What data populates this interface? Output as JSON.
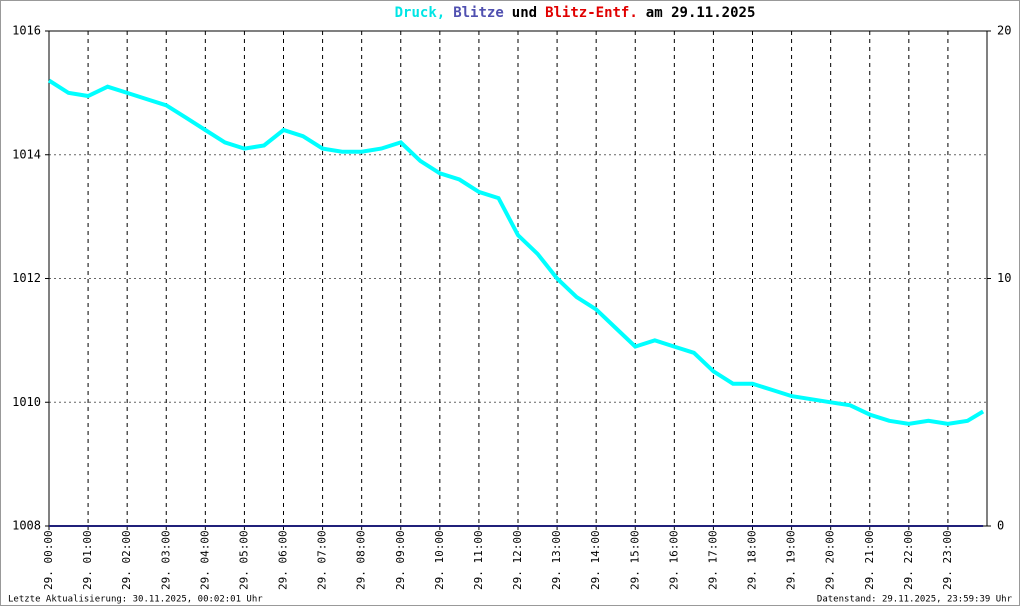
{
  "chart_data": {
    "type": "line",
    "title_parts": [
      {
        "text": "Druck,",
        "color": "#00e5e5"
      },
      {
        "text": "Blitze",
        "color": "#5050b0"
      },
      {
        "text": "und",
        "color": "#000000"
      },
      {
        "text": "Blitz-Entf.",
        "color": "#e00000"
      },
      {
        "text": "am 29.11.2025",
        "color": "#000000"
      }
    ],
    "x": [
      0,
      0.5,
      1,
      1.5,
      2,
      2.5,
      3,
      3.5,
      4,
      4.5,
      5,
      5.5,
      6,
      6.5,
      7,
      7.5,
      8,
      8.5,
      9,
      9.5,
      10,
      10.5,
      11,
      11.5,
      12,
      12.5,
      13,
      13.5,
      14,
      14.5,
      15,
      15.5,
      16,
      16.5,
      17,
      17.5,
      18,
      18.5,
      19,
      19.5,
      20,
      20.5,
      21,
      21.5,
      22,
      22.5,
      23,
      23.5,
      23.9
    ],
    "series": [
      {
        "name": "Druck",
        "color": "#00ffff",
        "values": [
          1015.2,
          1015.0,
          1014.95,
          1015.1,
          1015.0,
          1014.9,
          1014.8,
          1014.6,
          1014.4,
          1014.2,
          1014.1,
          1014.15,
          1014.4,
          1014.3,
          1014.1,
          1014.05,
          1014.05,
          1014.1,
          1014.2,
          1013.9,
          1013.7,
          1013.6,
          1013.4,
          1013.3,
          1012.7,
          1012.4,
          1012.0,
          1011.7,
          1011.5,
          1011.2,
          1010.9,
          1011.0,
          1010.9,
          1010.8,
          1010.5,
          1010.3,
          1010.3,
          1010.2,
          1010.1,
          1010.05,
          1010.0,
          1009.95,
          1009.8,
          1009.7,
          1009.65,
          1009.7,
          1009.65,
          1009.7,
          1009.85
        ]
      },
      {
        "name": "Blitze",
        "color": "#20207a",
        "axis": "y2",
        "values": [
          0,
          0,
          0,
          0,
          0,
          0,
          0,
          0,
          0,
          0,
          0,
          0,
          0,
          0,
          0,
          0,
          0,
          0,
          0,
          0,
          0,
          0,
          0,
          0,
          0,
          0,
          0,
          0,
          0,
          0,
          0,
          0,
          0,
          0,
          0,
          0,
          0,
          0,
          0,
          0,
          0,
          0,
          0,
          0,
          0,
          0,
          0,
          0,
          0
        ]
      }
    ],
    "xlim": [
      0,
      24
    ],
    "xticks": [
      {
        "value": 0,
        "label": "29. 00:00"
      },
      {
        "value": 1,
        "label": "29. 01:00"
      },
      {
        "value": 2,
        "label": "29. 02:00"
      },
      {
        "value": 3,
        "label": "29. 03:00"
      },
      {
        "value": 4,
        "label": "29. 04:00"
      },
      {
        "value": 5,
        "label": "29. 05:00"
      },
      {
        "value": 6,
        "label": "29. 06:00"
      },
      {
        "value": 7,
        "label": "29. 07:00"
      },
      {
        "value": 8,
        "label": "29. 08:00"
      },
      {
        "value": 9,
        "label": "29. 09:00"
      },
      {
        "value": 10,
        "label": "29. 10:00"
      },
      {
        "value": 11,
        "label": "29. 11:00"
      },
      {
        "value": 12,
        "label": "29. 12:00"
      },
      {
        "value": 13,
        "label": "29. 13:00"
      },
      {
        "value": 14,
        "label": "29. 14:00"
      },
      {
        "value": 15,
        "label": "29. 15:00"
      },
      {
        "value": 16,
        "label": "29. 16:00"
      },
      {
        "value": 17,
        "label": "29. 17:00"
      },
      {
        "value": 18,
        "label": "29. 18:00"
      },
      {
        "value": 19,
        "label": "29. 19:00"
      },
      {
        "value": 20,
        "label": "29. 20:00"
      },
      {
        "value": 21,
        "label": "29. 21:00"
      },
      {
        "value": 22,
        "label": "29. 22:00"
      },
      {
        "value": 23,
        "label": "29. 23:00"
      }
    ],
    "ylim": [
      1008,
      1016
    ],
    "yticks": [
      1008,
      1010,
      1012,
      1014,
      1016
    ],
    "y2lim": [
      0,
      20
    ],
    "y2ticks": [
      0,
      10,
      20
    ],
    "grid": true,
    "footer_left": "Letzte Aktualisierung: 30.11.2025, 00:02:01 Uhr",
    "footer_right": "Datenstand: 29.11.2025, 23:59:39 Uhr"
  }
}
